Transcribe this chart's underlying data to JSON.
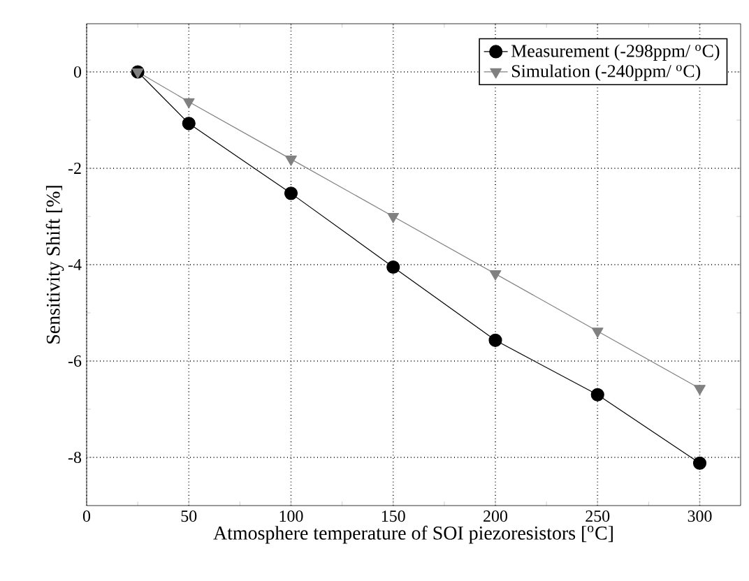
{
  "chart_data": {
    "type": "line",
    "xlabel": "Atmosphere temperature of SOI piezoresistors [$^{o}$C]",
    "ylabel": "Sensitivity Shift [%]",
    "series": [
      {
        "name": "Measurement  (-298ppm/ $^{o}$C)",
        "color": "#000000",
        "marker": "circle",
        "x": [
          25,
          50,
          100,
          150,
          200,
          250,
          300
        ],
        "values": [
          0,
          -1.07,
          -2.52,
          -4.05,
          -5.57,
          -6.7,
          -8.12
        ]
      },
      {
        "name": "Simulation      (-240ppm/ $^{o}$C)",
        "color": "#808080",
        "marker": "triangle",
        "x": [
          25,
          50,
          100,
          150,
          200,
          250,
          300
        ],
        "values": [
          0,
          -0.62,
          -1.81,
          -3.0,
          -4.19,
          -5.38,
          -6.57
        ]
      }
    ],
    "xlim": [
      0,
      320
    ],
    "ylim": [
      -9,
      1
    ],
    "xticks": [
      0,
      50,
      100,
      150,
      200,
      250,
      300
    ],
    "yticks": [
      -8,
      -6,
      -4,
      -2,
      0
    ],
    "grid": true,
    "legend": "top right",
    "line_style": "solid"
  }
}
